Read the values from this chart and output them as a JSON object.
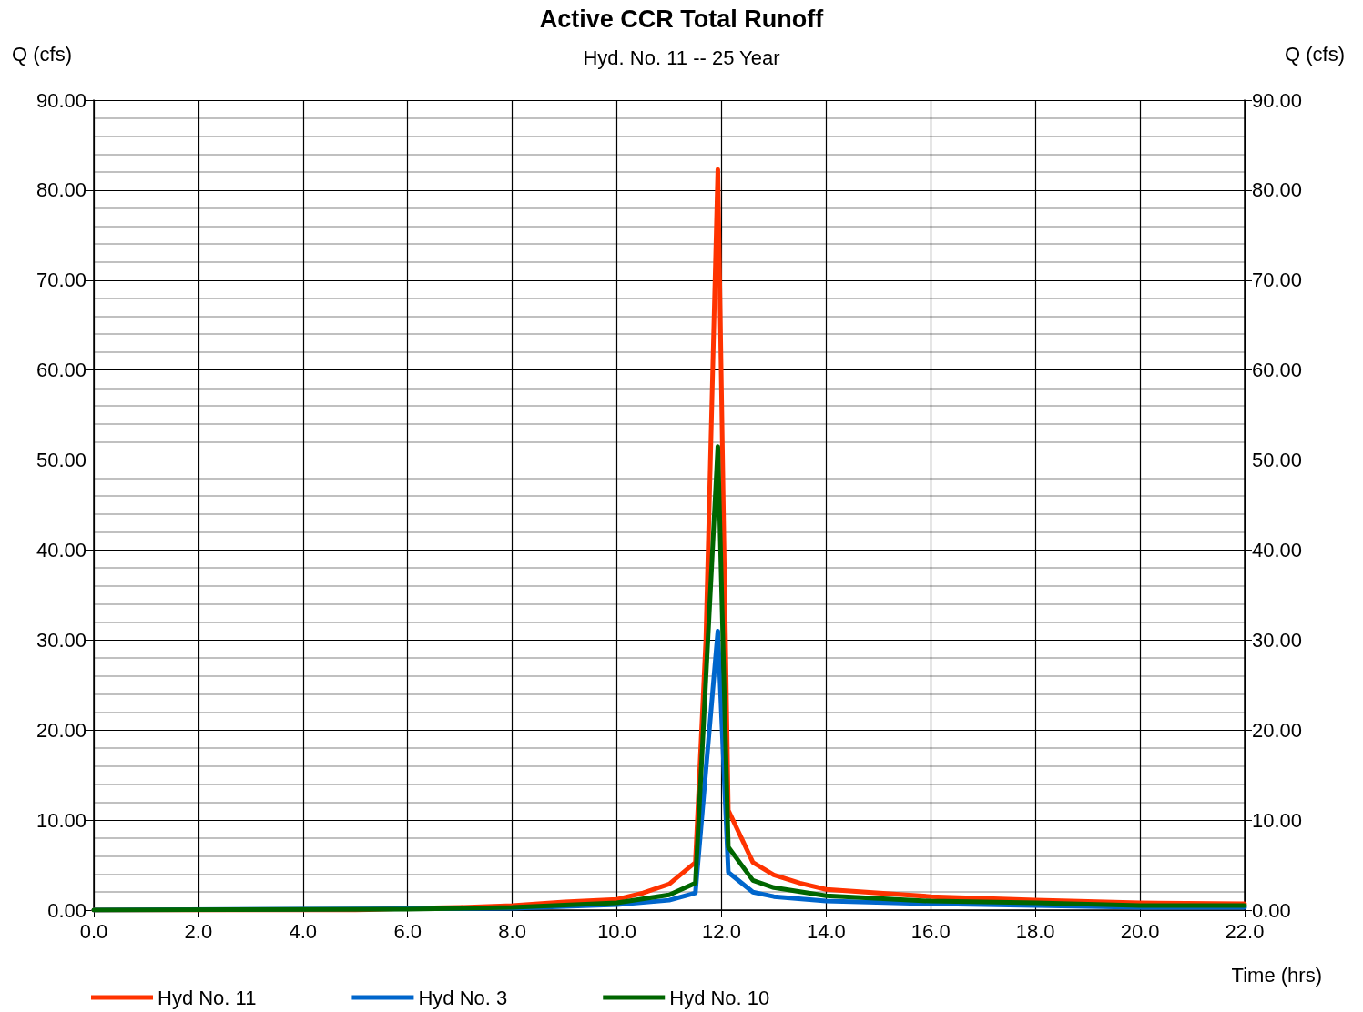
{
  "chart_data": {
    "type": "line",
    "title": "Active CCR Total Runoff",
    "subtitle": "Hyd. No. 11 -- 25 Year",
    "xlabel": "Time (hrs)",
    "ylabel": "Q (cfs)",
    "y2label": "Q (cfs)",
    "xlim": [
      0,
      22
    ],
    "xticks": [
      {
        "value": 0,
        "label": "0.0"
      },
      {
        "value": 2,
        "label": "2.0"
      },
      {
        "value": 4,
        "label": "4.0"
      },
      {
        "value": 6,
        "label": "6.0"
      },
      {
        "value": 8,
        "label": "8.0"
      },
      {
        "value": 10,
        "label": "10.0"
      },
      {
        "value": 12,
        "label": "12.0"
      },
      {
        "value": 14,
        "label": "14.0"
      },
      {
        "value": 16,
        "label": "16.0"
      },
      {
        "value": 18,
        "label": "18.0"
      },
      {
        "value": 20,
        "label": "20.0"
      },
      {
        "value": 22,
        "label": "22.0"
      }
    ],
    "ylim": [
      0,
      90
    ],
    "yticks": [
      {
        "value": 0,
        "label": "0.00"
      },
      {
        "value": 10,
        "label": "10.00"
      },
      {
        "value": 20,
        "label": "20.00"
      },
      {
        "value": 30,
        "label": "30.00"
      },
      {
        "value": 40,
        "label": "40.00"
      },
      {
        "value": 50,
        "label": "50.00"
      },
      {
        "value": 60,
        "label": "60.00"
      },
      {
        "value": 70,
        "label": "70.00"
      },
      {
        "value": 80,
        "label": "80.00"
      },
      {
        "value": 90,
        "label": "90.00"
      }
    ],
    "y2lim": [
      0,
      90
    ],
    "y2ticks": [
      {
        "value": 0,
        "label": "0.00"
      },
      {
        "value": 10,
        "label": "10.00"
      },
      {
        "value": 20,
        "label": "20.00"
      },
      {
        "value": 30,
        "label": "30.00"
      },
      {
        "value": 40,
        "label": "40.00"
      },
      {
        "value": 50,
        "label": "50.00"
      },
      {
        "value": 60,
        "label": "60.00"
      },
      {
        "value": 70,
        "label": "70.00"
      },
      {
        "value": 80,
        "label": "80.00"
      },
      {
        "value": 90,
        "label": "90.00"
      }
    ],
    "grid": true,
    "legend": "bottom left",
    "marker": "none",
    "line_style": "solid",
    "series": [
      {
        "name": "Hyd No. 11",
        "color": "#ff3300",
        "x": [
          0,
          5,
          6,
          7,
          8,
          9,
          10,
          10.5,
          11,
          11.5,
          11.7,
          11.93,
          12.13,
          12.6,
          13,
          13.5,
          14,
          16,
          18,
          20,
          22
        ],
        "values": [
          0,
          0,
          0.2,
          0.3,
          0.5,
          0.9,
          1.2,
          1.9,
          2.9,
          5.3,
          30,
          82.3,
          11.1,
          5.3,
          3.9,
          3.0,
          2.3,
          1.5,
          1.1,
          0.8,
          0.7
        ]
      },
      {
        "name": "Hyd No. 3",
        "color": "#0066cc",
        "x": [
          0,
          8,
          10,
          11,
          11.5,
          11.93,
          12.13,
          12.6,
          13,
          14,
          16,
          18,
          20,
          22
        ],
        "values": [
          0,
          0.2,
          0.6,
          1.1,
          1.9,
          31.0,
          4.2,
          2.0,
          1.5,
          1.0,
          0.7,
          0.5,
          0.3,
          0.3
        ]
      },
      {
        "name": "Hyd No. 10",
        "color": "#006600",
        "x": [
          0,
          6,
          8,
          10,
          11,
          11.5,
          11.93,
          12.13,
          12.6,
          13,
          14,
          16,
          18,
          20,
          22
        ],
        "values": [
          0,
          0.1,
          0.3,
          0.8,
          1.7,
          3.0,
          51.5,
          7.0,
          3.3,
          2.5,
          1.6,
          1.0,
          0.8,
          0.5,
          0.5
        ]
      }
    ]
  }
}
